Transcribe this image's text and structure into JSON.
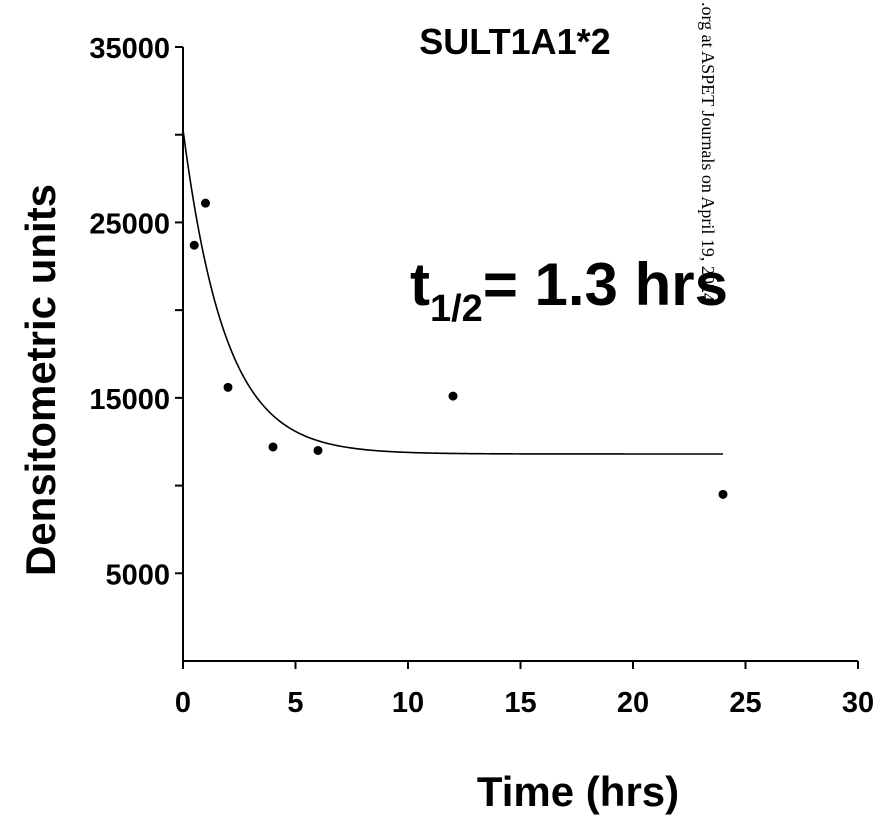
{
  "chart_data": {
    "type": "scatter",
    "title": "SULT1A1*2",
    "xlabel": "Time (hrs)",
    "ylabel": "Densitometric units",
    "xlim": [
      0,
      30
    ],
    "ylim": [
      0,
      35000
    ],
    "x_ticks": [
      0,
      5,
      10,
      15,
      20,
      25,
      30
    ],
    "y_ticks": [
      5000,
      15000,
      25000,
      35000
    ],
    "y_minor_ticks": [
      10000,
      20000,
      30000
    ],
    "grid": false,
    "legend": "none",
    "series": [
      {
        "mode": "markers",
        "x": [
          0.5,
          1,
          2,
          4,
          6,
          12,
          24
        ],
        "y": [
          23700,
          26100,
          15600,
          12200,
          12000,
          15100,
          9500
        ]
      },
      {
        "mode": "fitted-curve",
        "model": "one-phase exponential decay",
        "x_range": [
          0,
          24
        ],
        "y0": 30300,
        "plateau": 11800,
        "half_life": 1.3
      }
    ],
    "annotation": {
      "base": "t",
      "subscript": "1/2",
      "text": "= 1.3 hrs"
    },
    "colors": {
      "ink": "#000000",
      "background": "#ffffff"
    }
  },
  "watermark": {
    "line1": ".org at ASPET Journals on April 19, 2024"
  }
}
